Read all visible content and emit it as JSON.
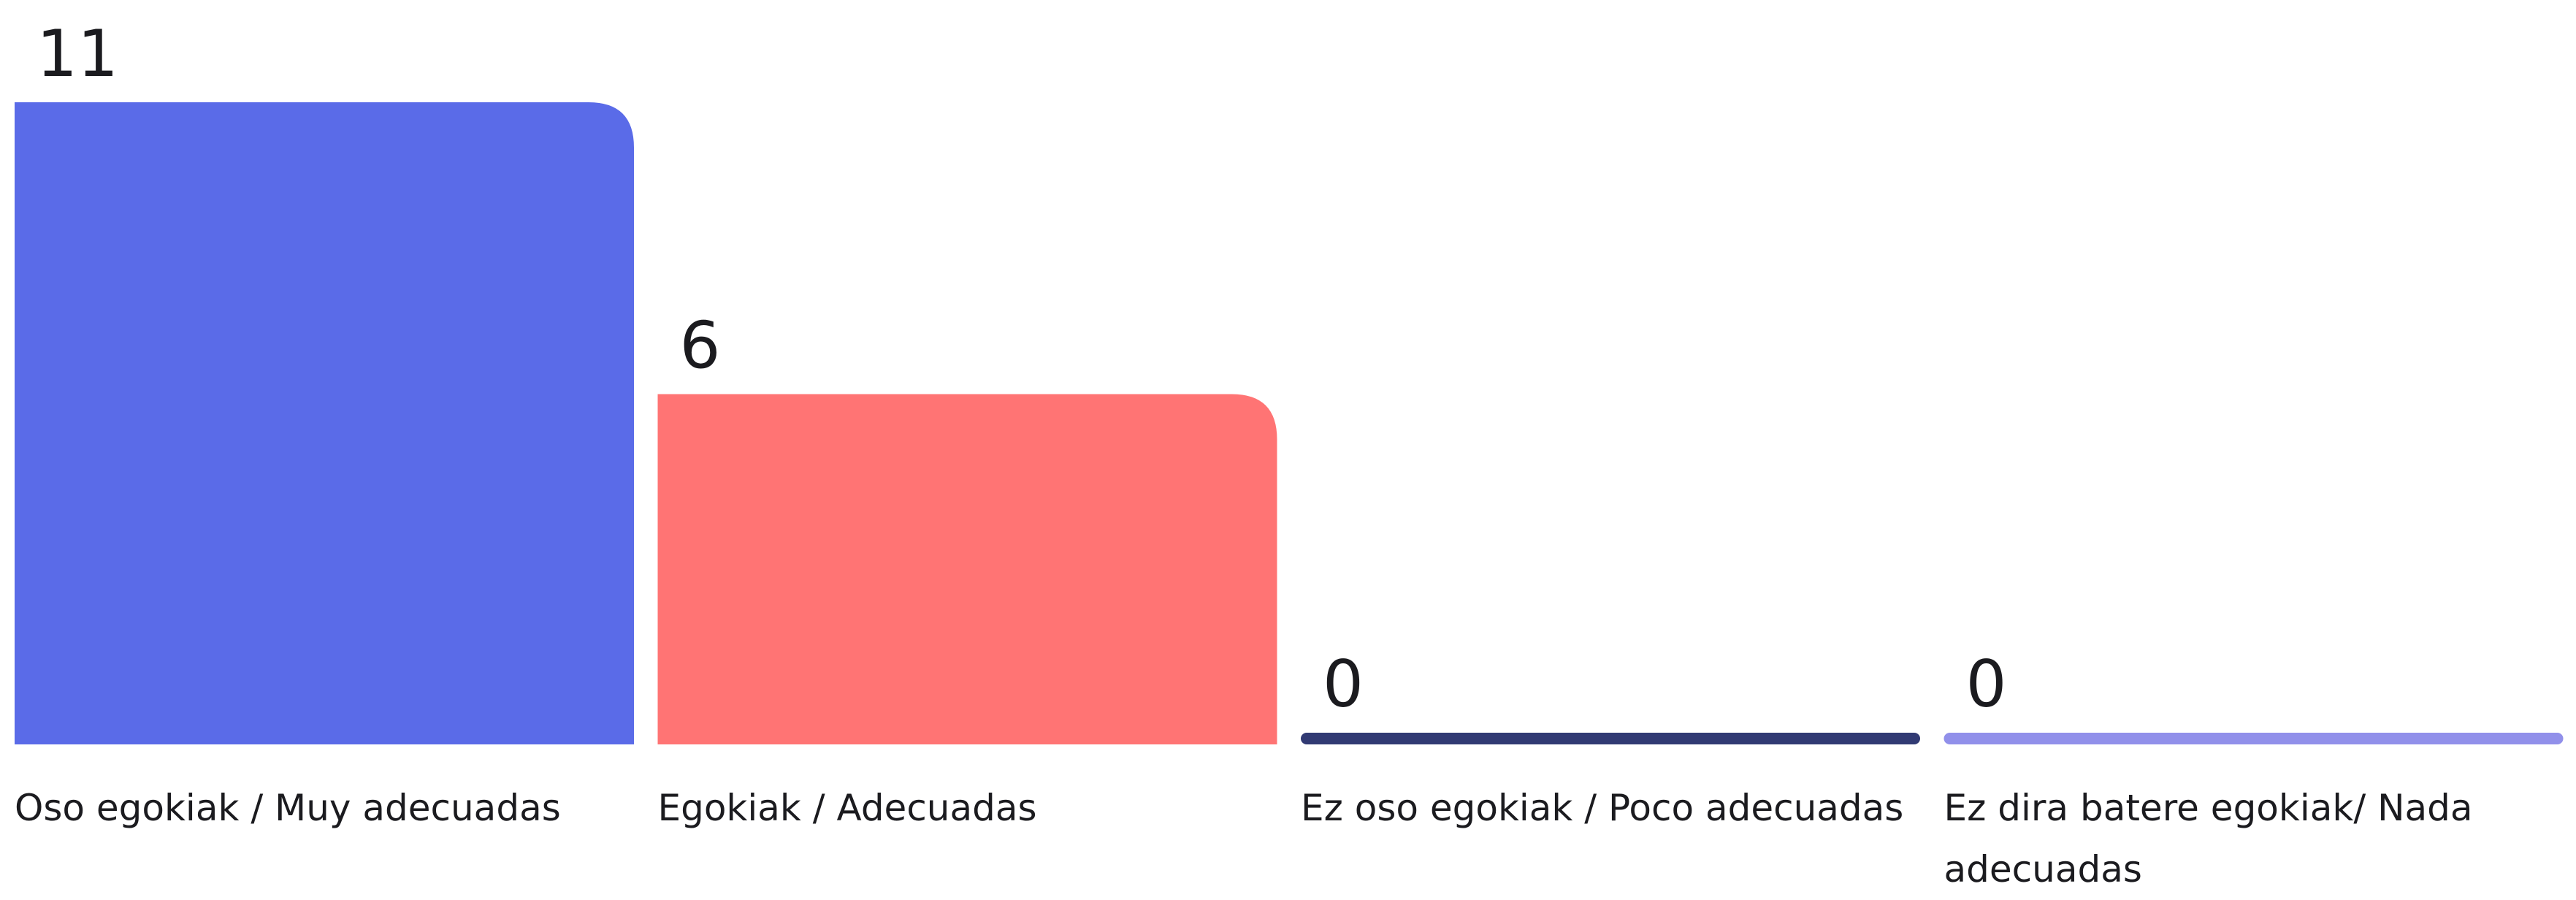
{
  "chart_data": {
    "type": "bar",
    "categories": [
      "Oso egokiak / Muy adecuadas",
      "Egokiak / Adecuadas",
      "Ez oso egokiak / Poco adecuadas",
      "Ez dira batere egokiak/ Nada adecuadas"
    ],
    "values": [
      11,
      6,
      0,
      0
    ],
    "colors": [
      "#5a6be8",
      "#ff7474",
      "#313a73",
      "#9190ea"
    ]
  }
}
